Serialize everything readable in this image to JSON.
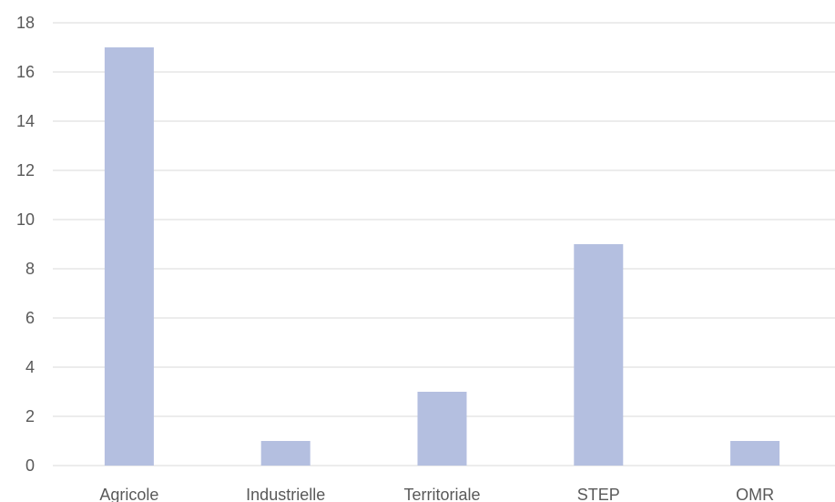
{
  "chart_data": {
    "type": "bar",
    "categories": [
      "Agricole",
      "Industrielle",
      "Territoriale",
      "STEP",
      "OMR"
    ],
    "values": [
      17,
      1,
      3,
      9,
      1
    ],
    "yticks": [
      "0",
      "2",
      "4",
      "6",
      "8",
      "10",
      "12",
      "14",
      "16",
      "18"
    ],
    "ylim": [
      0,
      18
    ],
    "grid": true,
    "legend": "none",
    "bar_color": "#b4bfe0",
    "gridline_color": "#d9d9d9",
    "label_color": "#595959"
  }
}
